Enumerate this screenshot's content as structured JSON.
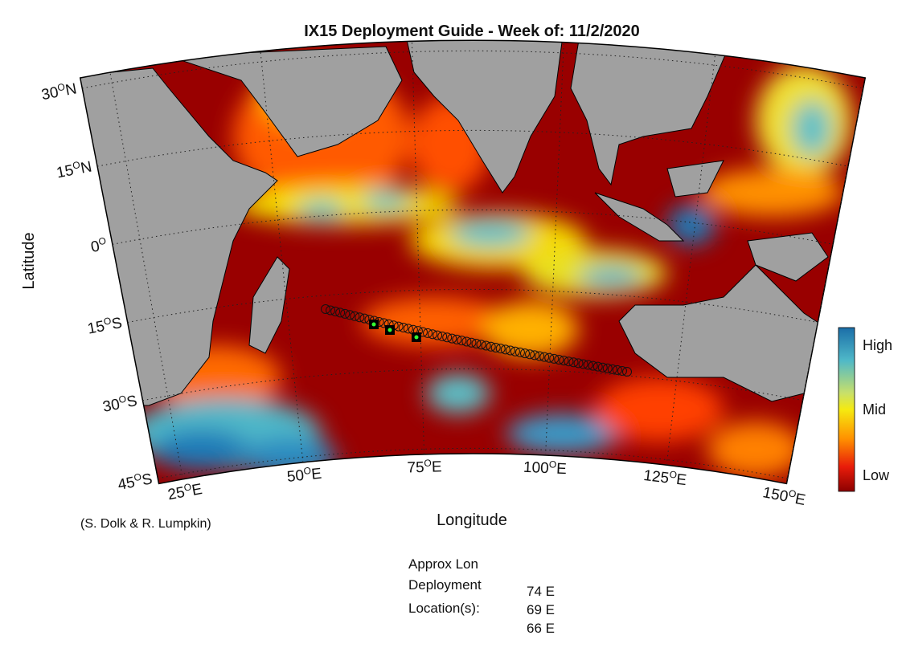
{
  "title": "IX15 Deployment Guide - Week of: 11/2/2020",
  "xlabel": "Longitude",
  "ylabel": "Latitude",
  "lat_ticks": [
    {
      "value": 30,
      "num": "30",
      "deg": "O",
      "hemi": "N"
    },
    {
      "value": 15,
      "num": "15",
      "deg": "O",
      "hemi": "N"
    },
    {
      "value": 0,
      "num": "0",
      "deg": "O"
    },
    {
      "value": -15,
      "num": "15",
      "deg": "O",
      "hemi": "S"
    },
    {
      "value": -30,
      "num": "30",
      "deg": "O",
      "hemi": "S"
    },
    {
      "value": -45,
      "num": "45",
      "deg": "O",
      "hemi": "S"
    }
  ],
  "lon_ticks": [
    {
      "value": 25,
      "num": "25",
      "deg": "O",
      "hemi": "E"
    },
    {
      "value": 50,
      "num": "50",
      "deg": "O",
      "hemi": "E"
    },
    {
      "value": 75,
      "num": "75",
      "deg": "O",
      "hemi": "E"
    },
    {
      "value": 100,
      "num": "100",
      "deg": "O",
      "hemi": "E"
    },
    {
      "value": 125,
      "num": "125",
      "deg": "O",
      "hemi": "E"
    },
    {
      "value": 150,
      "num": "150",
      "deg": "O",
      "hemi": "E"
    }
  ],
  "colorbar": {
    "labels": [
      "High",
      "Mid",
      "Low"
    ]
  },
  "credit": "(S. Dolk & R. Lumpkin)",
  "deployment": {
    "heading": [
      "Approx Lon",
      "Deployment",
      "Location(s):"
    ],
    "locations": [
      "74 E",
      "69 E",
      "66 E"
    ]
  }
}
